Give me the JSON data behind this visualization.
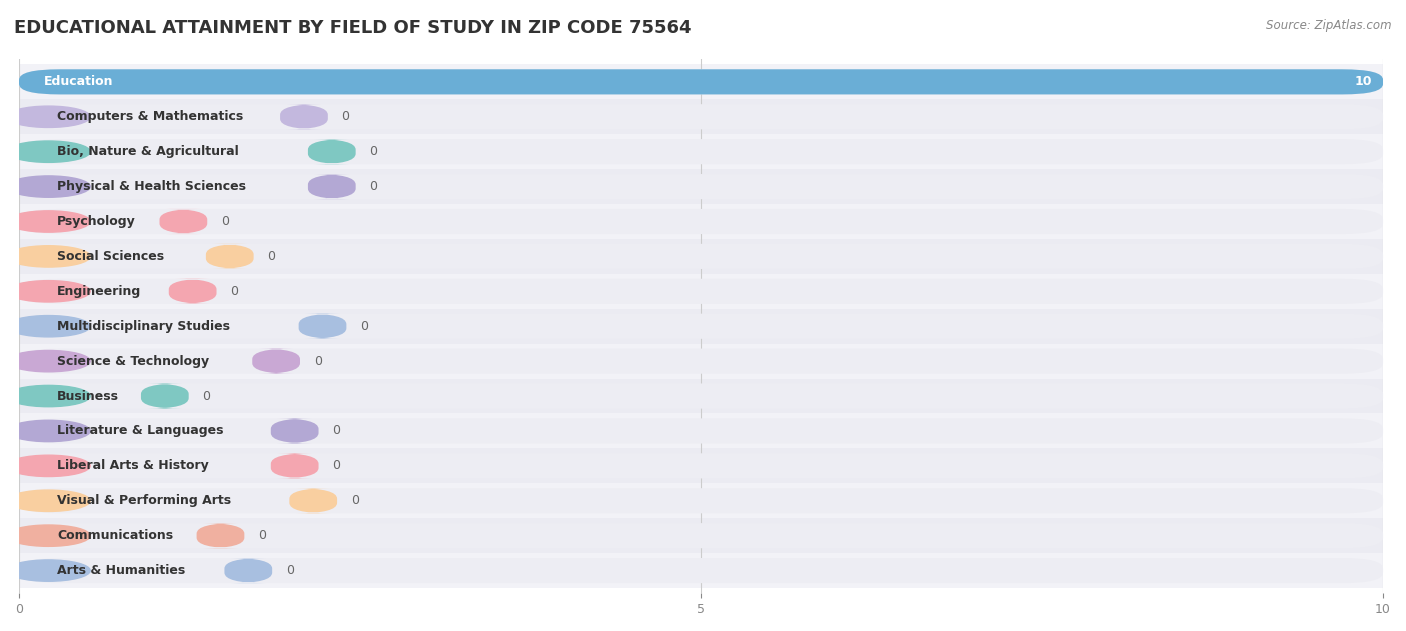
{
  "title": "EDUCATIONAL ATTAINMENT BY FIELD OF STUDY IN ZIP CODE 75564",
  "source": "Source: ZipAtlas.com",
  "categories": [
    "Education",
    "Computers & Mathematics",
    "Bio, Nature & Agricultural",
    "Physical & Health Sciences",
    "Psychology",
    "Social Sciences",
    "Engineering",
    "Multidisciplinary Studies",
    "Science & Technology",
    "Business",
    "Literature & Languages",
    "Liberal Arts & History",
    "Visual & Performing Arts",
    "Communications",
    "Arts & Humanities"
  ],
  "values": [
    10,
    0,
    0,
    0,
    0,
    0,
    0,
    0,
    0,
    0,
    0,
    0,
    0,
    0,
    0
  ],
  "bar_colors": [
    "#6aaed6",
    "#c3b8de",
    "#7fc8c2",
    "#b3a8d4",
    "#f4a6b0",
    "#f9cfa0",
    "#f4a6b0",
    "#a8bfe0",
    "#c9a8d4",
    "#7fc8c2",
    "#b3a8d4",
    "#f4a6b0",
    "#f9cfa0",
    "#f0b0a0",
    "#a8bfe0"
  ],
  "xlim": [
    0,
    10
  ],
  "xticks": [
    0,
    5,
    10
  ],
  "row_colors": [
    "#f2f2f7",
    "#ebebf2"
  ],
  "bar_bg_color": "#ededf3",
  "title_fontsize": 13,
  "label_fontsize": 9.0,
  "value_fontsize": 9.0,
  "value_color_inside": "white",
  "value_color_outside": "#888888"
}
